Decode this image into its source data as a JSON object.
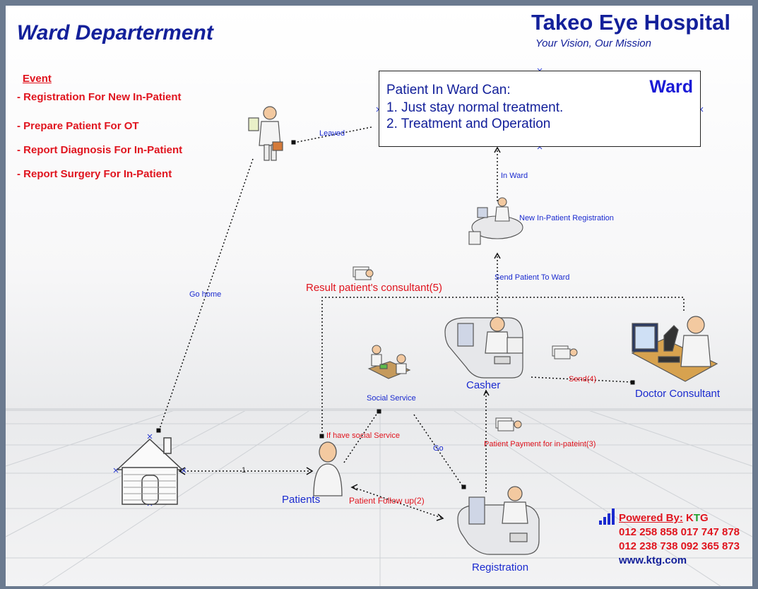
{
  "header": {
    "title": "Ward Departerment",
    "hospital_name": "Takeo Eye Hospital",
    "tagline": "Your Vision, Our Mission"
  },
  "events": {
    "heading": "Event",
    "items": [
      "- Registration For New In-Patient",
      "- Prepare Patient For OT",
      "- Report Diagnosis For In-Patient",
      "- Report Surgery For In-Patient"
    ]
  },
  "ward_box": {
    "label": "Ward",
    "heading": "Patient In Ward Can:",
    "line1": "1. Just stay normal treatment.",
    "line2": "2. Treatment and Operation"
  },
  "edges": {
    "leaved": "Leaved",
    "in_ward": "In Ward",
    "new_inpatient": "New In-Patient Registration",
    "send_to_ward": "Send Patient To Ward",
    "result_consultant": "Result patient's consultant(5)",
    "go_home": "Go home",
    "send4": "Send(4)",
    "social_service_cond": "If have social Service",
    "go": "Go",
    "payment": "Patient Payment for in-pateint(3)",
    "follow_up": "Patient Follow up(2)",
    "one": "1"
  },
  "nodes": {
    "social_service": "Social Service",
    "casher": "Casher",
    "doctor": "Doctor Consultant",
    "patients": "Patients",
    "registration": "Registration"
  },
  "footer": {
    "powered_label": "Powered By:",
    "brand_k": "K",
    "brand_t": "T",
    "brand_g": "G",
    "phone1": "012 258 858 017 747 878",
    "phone2": "012 238 738 092 365 873",
    "website": "www.ktg.com"
  },
  "colors": {
    "title_blue": "#13209a",
    "event_red": "#e0141e",
    "brand_green": "#1da12c"
  }
}
